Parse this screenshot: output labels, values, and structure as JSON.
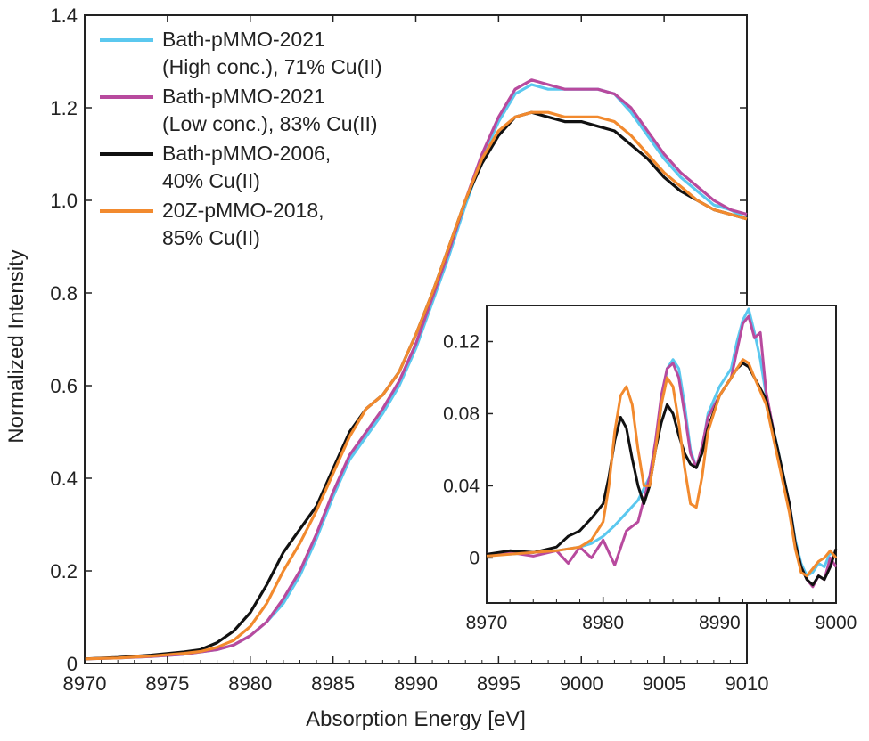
{
  "chart_data": [
    {
      "type": "line",
      "title": "",
      "xlabel": "Absorption Energy [eV]",
      "ylabel": "Normalized Intensity",
      "xlim": [
        8970,
        9010
      ],
      "ylim": [
        0,
        1.4
      ],
      "xticks": [
        "8970",
        "8975",
        "8980",
        "8985",
        "8990",
        "8995",
        "9000",
        "9005",
        "9010"
      ],
      "yticks": [
        "0",
        "0.2",
        "0.4",
        "0.6",
        "0.8",
        "1.0",
        "1.2",
        "1.4"
      ],
      "grid": false,
      "legend_position": "top-left",
      "series": [
        {
          "name": "Bath-pMMO-2021 (High conc.), 71% Cu(II)",
          "legend_lines": [
            "Bath-pMMO-2021",
            "(High conc.), 71% Cu(II)"
          ],
          "color": "#5bc8ef",
          "x": [
            8970,
            8972,
            8974,
            8976,
            8978,
            8979,
            8980,
            8981,
            8982,
            8983,
            8984,
            8985,
            8986,
            8987,
            8988,
            8989,
            8990,
            8991,
            8992,
            8993,
            8994,
            8995,
            8996,
            8997,
            8998,
            8999,
            9000,
            9001,
            9002,
            9003,
            9004,
            9005,
            9006,
            9007,
            9008,
            9009,
            9010
          ],
          "y": [
            0.01,
            0.012,
            0.015,
            0.02,
            0.03,
            0.04,
            0.06,
            0.09,
            0.13,
            0.19,
            0.27,
            0.36,
            0.44,
            0.49,
            0.54,
            0.6,
            0.68,
            0.78,
            0.88,
            0.99,
            1.09,
            1.17,
            1.23,
            1.25,
            1.24,
            1.24,
            1.24,
            1.24,
            1.23,
            1.19,
            1.14,
            1.09,
            1.05,
            1.02,
            0.99,
            0.98,
            0.96
          ]
        },
        {
          "name": "Bath-pMMO-2021 (Low conc.), 83% Cu(II)",
          "legend_lines": [
            "Bath-pMMO-2021",
            "(Low conc.), 83% Cu(II)"
          ],
          "color": "#b84a9e",
          "x": [
            8970,
            8972,
            8974,
            8976,
            8978,
            8979,
            8980,
            8981,
            8982,
            8983,
            8984,
            8985,
            8986,
            8987,
            8988,
            8989,
            8990,
            8991,
            8992,
            8993,
            8994,
            8995,
            8996,
            8997,
            8998,
            8999,
            9000,
            9001,
            9002,
            9003,
            9004,
            9005,
            9006,
            9007,
            9008,
            9009,
            9010
          ],
          "y": [
            0.01,
            0.012,
            0.015,
            0.02,
            0.03,
            0.04,
            0.06,
            0.09,
            0.14,
            0.2,
            0.28,
            0.37,
            0.45,
            0.5,
            0.55,
            0.61,
            0.69,
            0.79,
            0.89,
            1.0,
            1.1,
            1.18,
            1.24,
            1.26,
            1.25,
            1.24,
            1.24,
            1.24,
            1.23,
            1.2,
            1.15,
            1.1,
            1.06,
            1.03,
            1.0,
            0.98,
            0.97
          ]
        },
        {
          "name": "Bath-pMMO-2006, 40% Cu(II)",
          "legend_lines": [
            "Bath-pMMO-2006,",
            "40% Cu(II)"
          ],
          "color": "#111111",
          "x": [
            8970,
            8972,
            8974,
            8976,
            8977,
            8978,
            8979,
            8980,
            8981,
            8982,
            8983,
            8984,
            8985,
            8986,
            8987,
            8988,
            8989,
            8990,
            8991,
            8992,
            8993,
            8994,
            8995,
            8996,
            8997,
            8998,
            8999,
            9000,
            9001,
            9002,
            9003,
            9004,
            9005,
            9006,
            9007,
            9008,
            9009,
            9010
          ],
          "y": [
            0.01,
            0.013,
            0.018,
            0.025,
            0.03,
            0.045,
            0.07,
            0.11,
            0.17,
            0.24,
            0.29,
            0.34,
            0.42,
            0.5,
            0.55,
            0.58,
            0.63,
            0.71,
            0.8,
            0.9,
            1.0,
            1.08,
            1.14,
            1.18,
            1.19,
            1.18,
            1.17,
            1.17,
            1.16,
            1.15,
            1.12,
            1.09,
            1.05,
            1.02,
            1.0,
            0.98,
            0.97,
            0.96
          ]
        },
        {
          "name": "20Z-pMMO-2018, 85% Cu(II)",
          "legend_lines": [
            "20Z-pMMO-2018,",
            "85% Cu(II)"
          ],
          "color": "#f28a2e",
          "x": [
            8970,
            8972,
            8974,
            8976,
            8977,
            8978,
            8979,
            8980,
            8981,
            8982,
            8983,
            8984,
            8985,
            8986,
            8987,
            8988,
            8989,
            8990,
            8991,
            8992,
            8993,
            8994,
            8995,
            8996,
            8997,
            8998,
            8999,
            9000,
            9001,
            9002,
            9003,
            9004,
            9005,
            9006,
            9007,
            9008,
            9009,
            9010
          ],
          "y": [
            0.01,
            0.012,
            0.016,
            0.022,
            0.026,
            0.035,
            0.05,
            0.08,
            0.13,
            0.2,
            0.26,
            0.33,
            0.41,
            0.49,
            0.55,
            0.58,
            0.63,
            0.71,
            0.8,
            0.9,
            1.0,
            1.09,
            1.15,
            1.18,
            1.19,
            1.19,
            1.18,
            1.18,
            1.18,
            1.17,
            1.14,
            1.1,
            1.06,
            1.03,
            1.0,
            0.98,
            0.97,
            0.96
          ]
        }
      ]
    },
    {
      "type": "line",
      "title": "",
      "xlabel": "",
      "ylabel": "",
      "xlim": [
        8970,
        9000
      ],
      "ylim": [
        -0.025,
        0.14
      ],
      "xticks": [
        "8970",
        "8980",
        "8990",
        "9000"
      ],
      "yticks": [
        "0",
        "0.04",
        "0.08",
        "0.12"
      ],
      "grid": false,
      "series": [
        {
          "color": "#5bc8ef",
          "x": [
            8970,
            8972,
            8974,
            8976,
            8978,
            8979,
            8980,
            8981,
            8982,
            8983,
            8984,
            8984.5,
            8985,
            8985.5,
            8986,
            8986.5,
            8987,
            8987.5,
            8988,
            8988.5,
            8989,
            8990,
            8991,
            8991.5,
            8992,
            8992.5,
            8993,
            8993.5,
            8994,
            8995,
            8996,
            8996.5,
            8997,
            8997.5,
            8998,
            8998.5,
            8999,
            8999.5,
            9000
          ],
          "y": [
            0.002,
            0.002,
            0.003,
            0.004,
            0.006,
            0.008,
            0.012,
            0.018,
            0.025,
            0.032,
            0.045,
            0.06,
            0.085,
            0.105,
            0.11,
            0.105,
            0.085,
            0.06,
            0.05,
            0.06,
            0.08,
            0.095,
            0.105,
            0.12,
            0.132,
            0.138,
            0.125,
            0.11,
            0.09,
            0.06,
            0.03,
            0.01,
            -0.003,
            -0.01,
            -0.008,
            -0.003,
            -0.005,
            0.003,
            0.0
          ]
        },
        {
          "color": "#b84a9e",
          "x": [
            8970,
            8972,
            8974,
            8976,
            8977,
            8978,
            8979,
            8980,
            8981,
            8982,
            8983,
            8984,
            8984.5,
            8985,
            8985.5,
            8986,
            8986.5,
            8987,
            8987.5,
            8988,
            8988.5,
            8989,
            8990,
            8991,
            8991.5,
            8992,
            8992.5,
            8993,
            8993.5,
            8994,
            8995,
            8996,
            8996.5,
            8997,
            8997.5,
            8998,
            8998.5,
            8999,
            8999.5,
            9000
          ],
          "y": [
            0.002,
            0.003,
            0.001,
            0.004,
            -0.003,
            0.006,
            0.0,
            0.01,
            -0.004,
            0.015,
            0.02,
            0.045,
            0.065,
            0.09,
            0.105,
            0.108,
            0.1,
            0.08,
            0.058,
            0.05,
            0.062,
            0.078,
            0.09,
            0.1,
            0.115,
            0.13,
            0.134,
            0.122,
            0.125,
            0.092,
            0.058,
            0.03,
            0.008,
            -0.005,
            -0.012,
            -0.016,
            -0.01,
            -0.012,
            0.0,
            -0.005
          ]
        },
        {
          "color": "#111111",
          "x": [
            8970,
            8972,
            8974,
            8976,
            8977,
            8978,
            8979,
            8980,
            8980.5,
            8981,
            8981.5,
            8982,
            8982.5,
            8983,
            8983.5,
            8984,
            8984.5,
            8985,
            8985.5,
            8986,
            8986.5,
            8987,
            8987.5,
            8988,
            8988.5,
            8989,
            8990,
            8991,
            8991.5,
            8992,
            8992.5,
            8993,
            8994,
            8995,
            8996,
            8996.5,
            8997,
            8997.5,
            8998,
            8998.5,
            8999,
            8999.5,
            9000
          ],
          "y": [
            0.002,
            0.004,
            0.003,
            0.006,
            0.012,
            0.015,
            0.022,
            0.03,
            0.045,
            0.065,
            0.078,
            0.072,
            0.055,
            0.04,
            0.03,
            0.04,
            0.06,
            0.075,
            0.085,
            0.08,
            0.068,
            0.058,
            0.052,
            0.05,
            0.058,
            0.072,
            0.09,
            0.1,
            0.105,
            0.108,
            0.106,
            0.1,
            0.088,
            0.06,
            0.03,
            0.008,
            -0.005,
            -0.012,
            -0.015,
            -0.01,
            -0.012,
            -0.005,
            0.005
          ]
        },
        {
          "color": "#f28a2e",
          "x": [
            8970,
            8972,
            8974,
            8976,
            8978,
            8979,
            8980,
            8980.5,
            8981,
            8981.5,
            8982,
            8982.5,
            8983,
            8983.5,
            8984,
            8984.5,
            8985,
            8985.5,
            8986,
            8986.5,
            8987,
            8987.5,
            8988,
            8988.5,
            8989,
            8990,
            8991,
            8991.5,
            8992,
            8992.5,
            8993,
            8994,
            8995,
            8996,
            8996.5,
            8997,
            8997.5,
            8998,
            8998.5,
            8999,
            8999.5,
            9000
          ],
          "y": [
            0.001,
            0.002,
            0.003,
            0.004,
            0.006,
            0.01,
            0.02,
            0.04,
            0.07,
            0.09,
            0.095,
            0.085,
            0.06,
            0.04,
            0.04,
            0.06,
            0.085,
            0.1,
            0.095,
            0.075,
            0.05,
            0.03,
            0.028,
            0.045,
            0.07,
            0.09,
            0.1,
            0.105,
            0.11,
            0.108,
            0.1,
            0.085,
            0.055,
            0.025,
            0.005,
            -0.008,
            -0.01,
            -0.006,
            -0.002,
            0.0,
            0.004,
            0.0
          ]
        }
      ]
    }
  ]
}
